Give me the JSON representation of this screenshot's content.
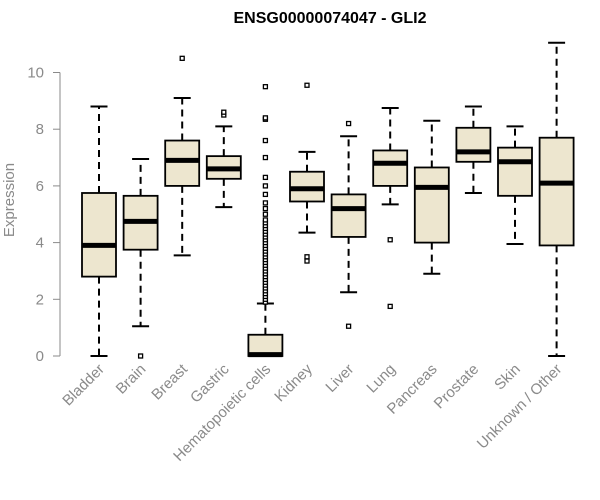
{
  "chart_data": {
    "type": "boxplot",
    "title": "ENSG00000074047 - GLI2",
    "xlabel": "",
    "ylabel": "Expression",
    "ylim": [
      0,
      11
    ],
    "yticks": [
      0,
      2,
      4,
      6,
      8,
      10
    ],
    "box_fill": "#ede6cf",
    "stroke": "#000000",
    "axis_color": "#8a8a8a",
    "categories": [
      "Bladder",
      "Brain",
      "Breast",
      "Gastric",
      "Hematopoietic cells",
      "Kidney",
      "Liver",
      "Lung",
      "Pancreas",
      "Prostate",
      "Skin",
      "Unknown / Other"
    ],
    "boxes": [
      {
        "min": 0.0,
        "q1": 2.8,
        "median": 3.9,
        "q3": 5.75,
        "max": 8.8,
        "outliers": []
      },
      {
        "min": 1.05,
        "q1": 3.75,
        "median": 4.75,
        "q3": 5.65,
        "max": 6.95,
        "outliers": [
          0.0
        ]
      },
      {
        "min": 3.55,
        "q1": 6.0,
        "median": 6.9,
        "q3": 7.6,
        "max": 9.1,
        "outliers": [
          10.5
        ]
      },
      {
        "min": 5.25,
        "q1": 6.25,
        "median": 6.6,
        "q3": 7.05,
        "max": 8.1,
        "outliers": [
          8.5,
          8.6
        ]
      },
      {
        "min": 0.0,
        "q1": 0.0,
        "median": 0.05,
        "q3": 0.75,
        "max": 1.85,
        "outliers": [
          1.9,
          2.0,
          2.1,
          2.2,
          2.3,
          2.4,
          2.5,
          2.6,
          2.7,
          2.8,
          2.9,
          3.0,
          3.1,
          3.2,
          3.3,
          3.4,
          3.5,
          3.6,
          3.7,
          3.8,
          3.9,
          4.0,
          4.1,
          4.2,
          4.3,
          4.4,
          4.5,
          4.6,
          4.7,
          4.8,
          5.0,
          5.2,
          5.4,
          5.7,
          6.0,
          6.3,
          7.0,
          7.6,
          8.35,
          8.4,
          9.5
        ]
      },
      {
        "min": 4.35,
        "q1": 5.45,
        "median": 5.9,
        "q3": 6.5,
        "max": 7.2,
        "outliers": [
          3.35,
          3.5,
          9.55
        ]
      },
      {
        "min": 2.25,
        "q1": 4.2,
        "median": 5.2,
        "q3": 5.7,
        "max": 7.75,
        "outliers": [
          1.05,
          8.2
        ]
      },
      {
        "min": 5.35,
        "q1": 6.0,
        "median": 6.8,
        "q3": 7.25,
        "max": 8.75,
        "outliers": [
          1.75,
          4.1
        ]
      },
      {
        "min": 2.9,
        "q1": 4.0,
        "median": 5.95,
        "q3": 6.65,
        "max": 8.3,
        "outliers": []
      },
      {
        "min": 5.75,
        "q1": 6.85,
        "median": 7.2,
        "q3": 8.05,
        "max": 8.8,
        "outliers": []
      },
      {
        "min": 3.95,
        "q1": 5.65,
        "median": 6.85,
        "q3": 7.35,
        "max": 8.1,
        "outliers": []
      },
      {
        "min": 0.0,
        "q1": 3.9,
        "median": 6.1,
        "q3": 7.7,
        "max": 11.05,
        "outliers": []
      }
    ]
  }
}
